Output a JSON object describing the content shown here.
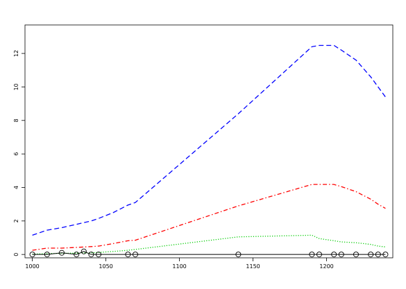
{
  "chart_data": {
    "type": "line",
    "title": "",
    "xlabel": "",
    "ylabel": "",
    "xlim": [
      995,
      1245
    ],
    "ylim": [
      -0.2,
      13.7
    ],
    "x_ticks": [
      1000,
      1050,
      1100,
      1150,
      1200
    ],
    "y_ticks": [
      0,
      2,
      4,
      6,
      8,
      10,
      12
    ],
    "x_tick_labels": [
      "1000",
      "1050",
      "1100",
      "1150",
      "1200"
    ],
    "y_tick_labels": [
      "0",
      "2",
      "4",
      "6",
      "8",
      "10",
      "12"
    ],
    "grid": false,
    "series": [
      {
        "color": "#0000ff",
        "dash": "dashed",
        "x": [
          1000,
          1010,
          1020,
          1030,
          1040,
          1045,
          1055,
          1065,
          1070,
          1140,
          1190,
          1195,
          1205,
          1210,
          1220,
          1230,
          1235,
          1240
        ],
        "y": [
          1.15,
          1.45,
          1.6,
          1.8,
          2.0,
          2.15,
          2.5,
          2.95,
          3.1,
          8.4,
          12.4,
          12.48,
          12.48,
          12.2,
          11.6,
          10.6,
          10.0,
          9.4
        ]
      },
      {
        "color": "#ff0000",
        "dash": "dashdot",
        "x": [
          1000,
          1010,
          1020,
          1030,
          1040,
          1045,
          1055,
          1065,
          1070,
          1140,
          1190,
          1195,
          1205,
          1210,
          1220,
          1230,
          1235,
          1240
        ],
        "y": [
          0.25,
          0.38,
          0.38,
          0.42,
          0.47,
          0.5,
          0.65,
          0.82,
          0.85,
          2.9,
          4.18,
          4.18,
          4.18,
          4.05,
          3.75,
          3.3,
          3.0,
          2.75
        ]
      },
      {
        "color": "#00cc00",
        "dash": "dotted",
        "x": [
          1000,
          1010,
          1020,
          1030,
          1040,
          1045,
          1055,
          1065,
          1070,
          1140,
          1190,
          1195,
          1205,
          1210,
          1220,
          1230,
          1235,
          1240
        ],
        "y": [
          0.02,
          0.05,
          0.07,
          0.08,
          0.1,
          0.12,
          0.18,
          0.25,
          0.3,
          1.05,
          1.15,
          0.95,
          0.82,
          0.75,
          0.7,
          0.6,
          0.5,
          0.45
        ]
      },
      {
        "color": "#000000",
        "dash": "solid",
        "markers": "open-circle",
        "x": [
          1000,
          1010,
          1020,
          1030,
          1035,
          1040,
          1045,
          1065,
          1070,
          1140,
          1190,
          1195,
          1205,
          1210,
          1220,
          1230,
          1235,
          1240
        ],
        "y": [
          0,
          0,
          0.1,
          0,
          0.18,
          0,
          0,
          0,
          0,
          0,
          0,
          0,
          0,
          0,
          0,
          0,
          0,
          0
        ]
      }
    ]
  }
}
